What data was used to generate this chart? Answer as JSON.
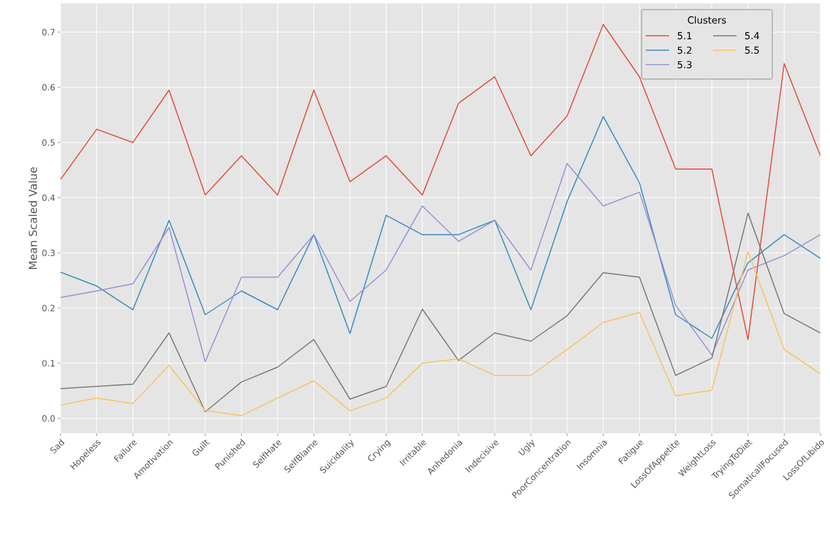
{
  "chart_data": {
    "type": "line",
    "ylabel": "Mean Scaled Value",
    "legend_title": "Clusters",
    "categories": [
      "Sad",
      "Hopeless",
      "Failure",
      "Amotivation",
      "Guilt",
      "Punished",
      "SelfHate",
      "SelfBlame",
      "Suicidality",
      "Crying",
      "Irritable",
      "Anhedonia",
      "Indecisive",
      "Ugly",
      "PoorConcentration",
      "Insomnia",
      "Fatigue",
      "LossOfAppetite",
      "WeightLoss",
      "TryingToDiet",
      "SomaticallFocused",
      "LossOfLibido"
    ],
    "series": [
      {
        "name": "5.1",
        "color": "#e24a33",
        "values": [
          0.433,
          0.524,
          0.5,
          0.595,
          0.405,
          0.476,
          0.405,
          0.595,
          0.429,
          0.476,
          0.405,
          0.571,
          0.619,
          0.476,
          0.548,
          0.714,
          0.619,
          0.452,
          0.452,
          0.143,
          0.643,
          0.476
        ]
      },
      {
        "name": "5.2",
        "color": "#348abd",
        "values": [
          0.265,
          0.24,
          0.197,
          0.359,
          0.188,
          0.231,
          0.197,
          0.333,
          0.154,
          0.368,
          0.333,
          0.333,
          0.359,
          0.197,
          0.393,
          0.547,
          0.427,
          0.188,
          0.145,
          0.282,
          0.333,
          0.29
        ]
      },
      {
        "name": "5.3",
        "color": "#988ed5",
        "values": [
          0.219,
          0.231,
          0.244,
          0.346,
          0.103,
          0.256,
          0.256,
          0.333,
          0.212,
          0.269,
          0.385,
          0.321,
          0.359,
          0.269,
          0.462,
          0.385,
          0.41,
          0.205,
          0.115,
          0.269,
          0.295,
          0.333
        ]
      },
      {
        "name": "5.4",
        "color": "#777777",
        "values": [
          0.054,
          0.058,
          0.062,
          0.155,
          0.012,
          0.066,
          0.093,
          0.143,
          0.035,
          0.058,
          0.198,
          0.105,
          0.155,
          0.14,
          0.186,
          0.264,
          0.256,
          0.078,
          0.109,
          0.372,
          0.19,
          0.155
        ]
      },
      {
        "name": "5.5",
        "color": "#fbc15e",
        "values": [
          0.024,
          0.037,
          0.027,
          0.096,
          0.014,
          0.005,
          0.037,
          0.068,
          0.014,
          0.037,
          0.1,
          0.108,
          0.078,
          0.078,
          0.125,
          0.174,
          0.192,
          0.041,
          0.051,
          0.302,
          0.125,
          0.081
        ]
      }
    ],
    "ylim": [
      -0.027,
      0.752
    ],
    "yticks": [
      {
        "value": 0.0,
        "label": "0.0"
      },
      {
        "value": 0.1,
        "label": "0.1"
      },
      {
        "value": 0.2,
        "label": "0.2"
      },
      {
        "value": 0.3,
        "label": "0.3"
      },
      {
        "value": 0.4,
        "label": "0.4"
      },
      {
        "value": 0.5,
        "label": "0.5"
      },
      {
        "value": 0.6,
        "label": "0.6"
      },
      {
        "value": 0.7,
        "label": "0.7"
      }
    ],
    "grid": true,
    "legend": "top right",
    "line_style": "solid",
    "marker": "none"
  }
}
